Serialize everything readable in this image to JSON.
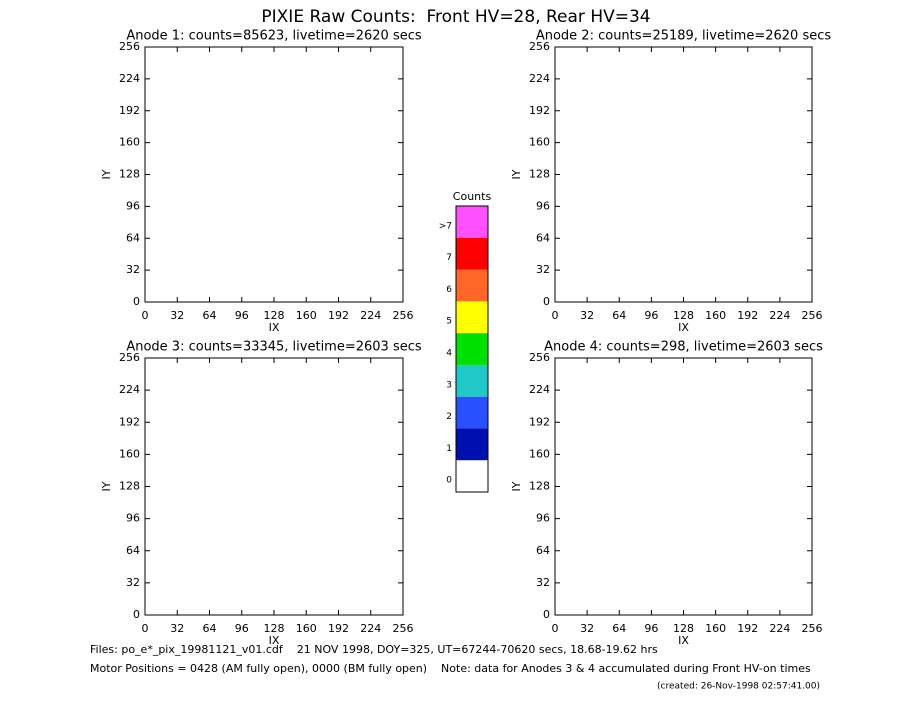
{
  "title": "PIXIE Raw Counts:  Front HV=28, Rear HV=34",
  "chart_data": [
    {
      "type": "heatmap",
      "title": "Anode 1: counts=85623, livetime=2620 secs",
      "xlabel": "IX",
      "ylabel": "IY",
      "xlim": [
        0,
        256
      ],
      "ylim": [
        0,
        256
      ],
      "xticks": [
        0,
        32,
        64,
        96,
        128,
        160,
        192,
        224,
        256
      ],
      "yticks": [
        0,
        32,
        64,
        96,
        128,
        160,
        192,
        224,
        256
      ]
    },
    {
      "type": "heatmap",
      "title": "Anode 2: counts=25189, livetime=2620 secs",
      "xlabel": "IX",
      "ylabel": "IY",
      "xlim": [
        0,
        256
      ],
      "ylim": [
        0,
        256
      ],
      "xticks": [
        0,
        32,
        64,
        96,
        128,
        160,
        192,
        224,
        256
      ],
      "yticks": [
        0,
        32,
        64,
        96,
        128,
        160,
        192,
        224,
        256
      ]
    },
    {
      "type": "heatmap",
      "title": "Anode 3: counts=33345, livetime=2603 secs",
      "xlabel": "IX",
      "ylabel": "IY",
      "xlim": [
        0,
        256
      ],
      "ylim": [
        0,
        256
      ],
      "xticks": [
        0,
        32,
        64,
        96,
        128,
        160,
        192,
        224,
        256
      ],
      "yticks": [
        0,
        32,
        64,
        96,
        128,
        160,
        192,
        224,
        256
      ]
    },
    {
      "type": "heatmap",
      "title": "Anode 4: counts=298, livetime=2603 secs",
      "xlabel": "IX",
      "ylabel": "IY",
      "xlim": [
        0,
        256
      ],
      "ylim": [
        0,
        256
      ],
      "xticks": [
        0,
        32,
        64,
        96,
        128,
        160,
        192,
        224,
        256
      ],
      "yticks": [
        0,
        32,
        64,
        96,
        128,
        160,
        192,
        224,
        256
      ]
    }
  ],
  "colorbar": {
    "title": "Counts",
    "labels": [
      "0",
      "1",
      "2",
      "3",
      "4",
      "5",
      "6",
      "7",
      ">7"
    ],
    "colors": [
      "#ffffff",
      "#0010b0",
      "#2850ff",
      "#20c8c8",
      "#00e000",
      "#ffff00",
      "#ff6628",
      "#ff0000",
      "#ff50ff"
    ]
  },
  "footer": [
    "Files: po_e*_pix_19981121_v01.cdf    21 NOV 1998, DOY=325, UT=67244-70620 secs, 18.68-19.62 hrs",
    "Motor Positions = 0428 (AM fully open), 0000 (BM fully open)    Note: data for Anodes 3 & 4 accumulated during Front HV-on times",
    "(created: 26-Nov-1998 02:57:41.00)"
  ]
}
